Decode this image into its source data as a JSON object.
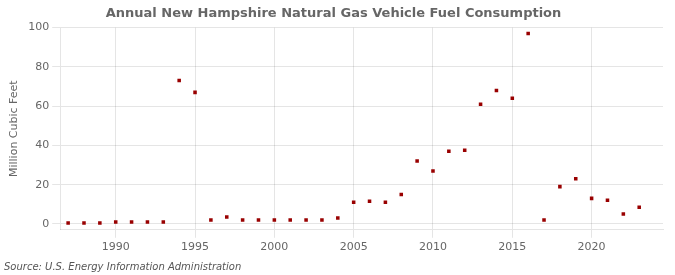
{
  "chart_data": {
    "type": "scatter",
    "title": "Annual New Hampshire Natural Gas Vehicle Fuel Consumption",
    "ylabel": "Million Cubic Feet",
    "annotations": [
      "Source: U.S. Energy Information Administration"
    ],
    "x": [
      1987,
      1988,
      1989,
      1990,
      1991,
      1992,
      1993,
      1994,
      1995,
      1996,
      1997,
      1998,
      1999,
      2000,
      2001,
      2002,
      2003,
      2004,
      2005,
      2006,
      2007,
      2008,
      2009,
      2010,
      2011,
      2012,
      2013,
      2014,
      2015,
      2016,
      2017,
      2018,
      2019,
      2020,
      2021,
      2022,
      2023
    ],
    "values": [
      0.5,
      0.5,
      0.5,
      1.0,
      1.0,
      1.0,
      1.0,
      73.0,
      67.0,
      2.0,
      3.5,
      2.0,
      2.0,
      2.0,
      2.0,
      2.0,
      2.0,
      3.0,
      11.0,
      11.5,
      11.0,
      15.0,
      32.0,
      27.0,
      37.0,
      37.5,
      61.0,
      68.0,
      64.0,
      97.0,
      2.0,
      19.0,
      23.0,
      13.0,
      12.0,
      5.0,
      8.5
    ],
    "color": "#990000",
    "marker": "square",
    "xlim": [
      1986.5,
      2024.5
    ],
    "ylim": [
      -3,
      100
    ],
    "xticks": [
      1990,
      1995,
      2000,
      2005,
      2010,
      2015,
      2020
    ],
    "yticks": [
      0,
      20,
      40,
      60,
      80,
      100
    ],
    "grid": true
  }
}
